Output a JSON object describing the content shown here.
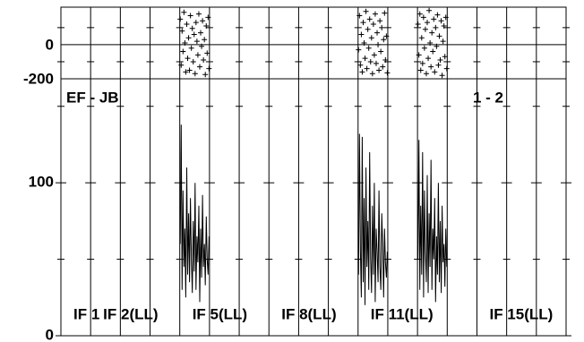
{
  "chart_data": {
    "type": "possm",
    "baseline": "EF - JB",
    "stokes_label": "1 - 2",
    "xlim": [
      0,
      17
    ],
    "phase_ylim": [
      -200,
      220
    ],
    "phase_yticks": [
      0,
      -200
    ],
    "phase_minor_yticks": [
      -100,
      100
    ],
    "amp_ylim": [
      0,
      168
    ],
    "amp_yticks": [
      0,
      100
    ],
    "amp_minor_yticks": [
      50,
      150
    ],
    "if_labels": [
      {
        "if": 1,
        "label": "IF 1"
      },
      {
        "if": 2,
        "label": "IF 2(LL)"
      },
      {
        "if": 5,
        "label": "IF 5(LL)"
      },
      {
        "if": 8,
        "label": "IF 8(LL)"
      },
      {
        "if": 11,
        "label": "IF 11(LL)"
      },
      {
        "if": 15,
        "label": "IF 15(LL)"
      }
    ],
    "spectra": [
      {
        "if": 5,
        "amplitude": [
          60,
          138,
          30,
          95,
          45,
          70,
          25,
          110,
          40,
          80,
          35,
          90,
          50,
          28,
          75,
          42,
          100,
          30,
          65,
          48,
          85,
          22,
          70,
          38,
          92,
          45,
          60,
          33,
          78,
          50,
          40,
          65
        ],
        "phase": [
          150,
          -120,
          80,
          -40,
          190,
          10,
          -160,
          120,
          -80,
          40,
          -150,
          170,
          -20,
          95,
          -100,
          60,
          -170,
          130,
          20,
          -60,
          180,
          -130,
          70,
          -10,
          140,
          -90,
          30,
          -175,
          110,
          -50,
          160,
          -140
        ]
      },
      {
        "if": 11,
        "amplitude": [
          40,
          132,
          55,
          25,
          130,
          35,
          90,
          20,
          110,
          45,
          75,
          30,
          120,
          50,
          28,
          85,
          40,
          100,
          22,
          70,
          55,
          35,
          95,
          45,
          30,
          80,
          60,
          25,
          70,
          48,
          38,
          55
        ],
        "phase": [
          -30,
          170,
          -120,
          60,
          -160,
          130,
          10,
          -80,
          195,
          -140,
          90,
          -20,
          150,
          -100,
          40,
          -170,
          120,
          -60,
          180,
          -110,
          70,
          0,
          -150,
          140,
          -40,
          100,
          -130,
          30,
          185,
          -90,
          50,
          -165
        ]
      },
      {
        "if": 13,
        "amplitude": [
          50,
          128,
          30,
          85,
          40,
          120,
          25,
          95,
          55,
          35,
          105,
          28,
          80,
          45,
          115,
          30,
          70,
          50,
          90,
          22,
          65,
          40,
          100,
          35,
          75,
          28,
          85,
          48,
          60,
          32,
          70,
          45
        ],
        "phase": [
          120,
          -60,
          180,
          -150,
          40,
          -110,
          160,
          -20,
          90,
          -170,
          130,
          -80,
          200,
          10,
          -130,
          70,
          -40,
          150,
          -160,
          100,
          -10,
          175,
          -120,
          50,
          -90,
          140,
          -180,
          20,
          110,
          -70,
          160,
          -140
        ]
      }
    ]
  }
}
